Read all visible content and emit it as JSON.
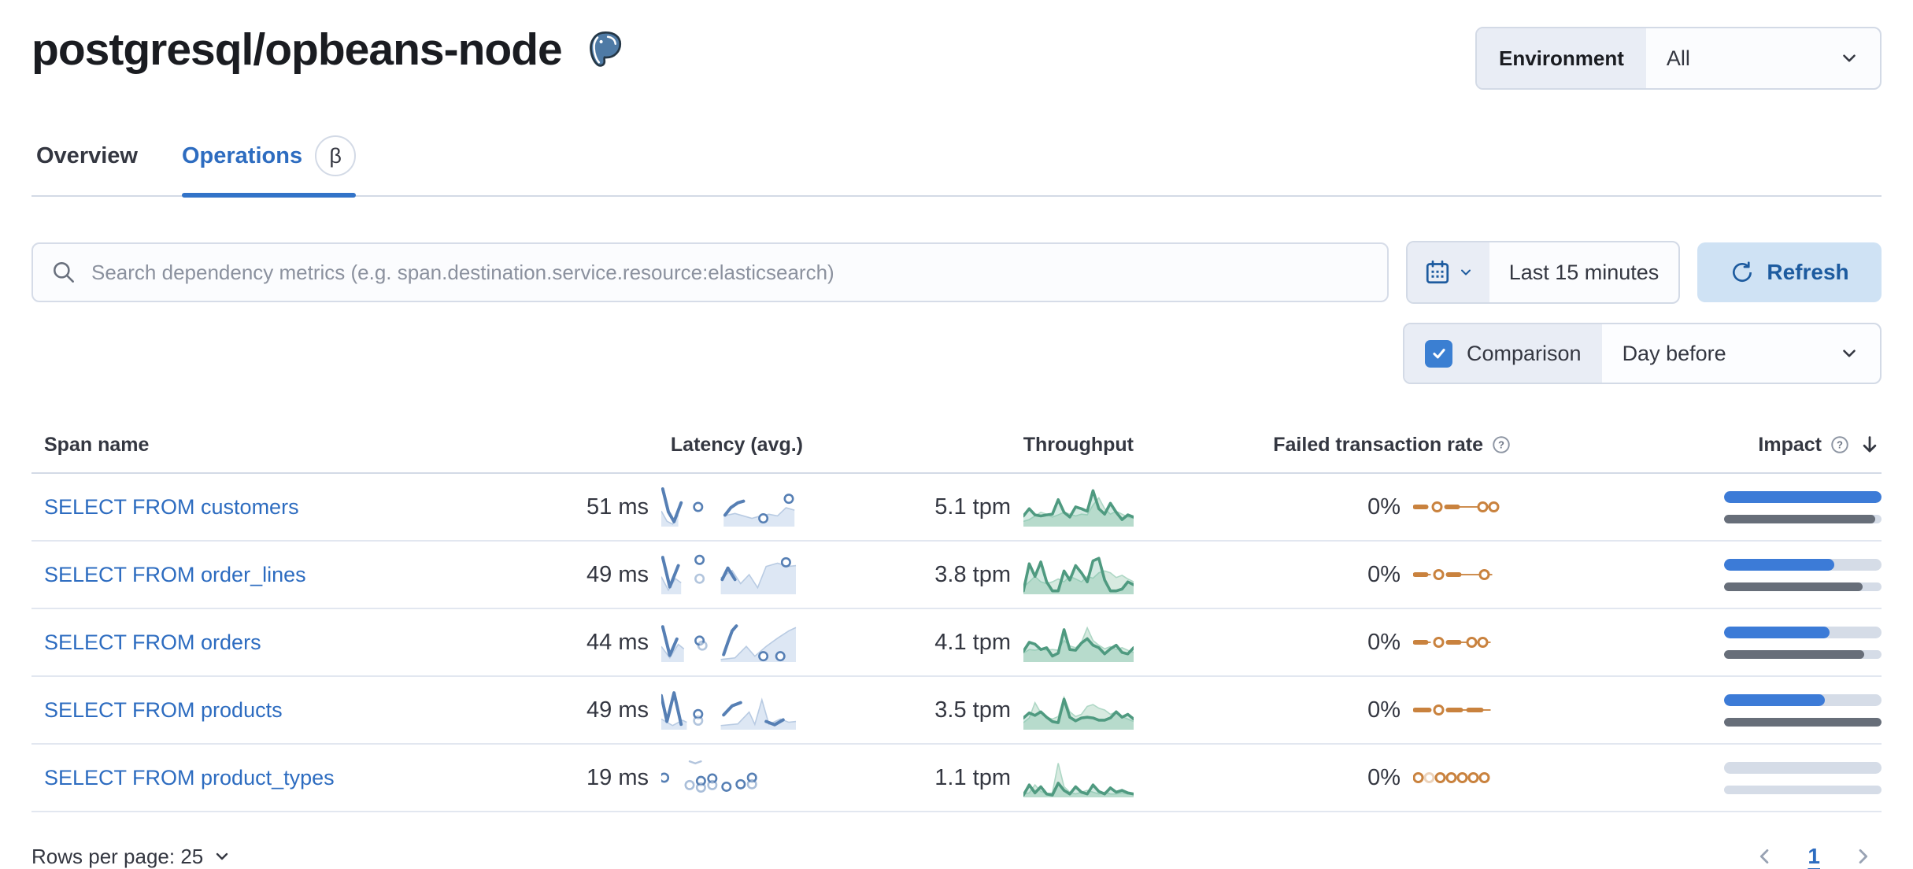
{
  "header": {
    "title": "postgresql/opbeans-node",
    "environment_label": "Environment",
    "environment_value": "All"
  },
  "tabs": {
    "overview": "Overview",
    "operations": "Operations",
    "beta": "β"
  },
  "toolbar": {
    "search_placeholder": "Search dependency metrics (e.g. span.destination.service.resource:elasticsearch)",
    "time_range": "Last 15 minutes",
    "refresh_label": "Refresh",
    "comparison_label": "Comparison",
    "comparison_checked": true,
    "comparison_value": "Day before"
  },
  "table": {
    "columns": [
      "Span name",
      "Latency (avg.)",
      "Throughput",
      "Failed transaction rate",
      "Impact"
    ],
    "sorted_by": "Impact",
    "sort_direction": "desc",
    "rows": [
      {
        "span_name": "SELECT FROM customers",
        "latency": "51 ms",
        "throughput": "5.1 tpm",
        "failed_rate": "0%",
        "impact": {
          "current_pct": 100,
          "previous_pct": 96
        },
        "latency_spark": {
          "fills": [
            [
              [
                0,
                60
              ],
              [
                4,
                85
              ],
              [
                8,
                92
              ],
              [
                12,
                70
              ],
              [
                12,
                98
              ],
              [
                0,
                98
              ]
            ],
            [
              [
                44,
                72
              ],
              [
                52,
                66
              ],
              [
                58,
                72
              ],
              [
                64,
                78
              ],
              [
                70,
                72
              ],
              [
                76,
                68
              ],
              [
                82,
                72
              ],
              [
                88,
                52
              ],
              [
                94,
                58
              ],
              [
                94,
                98
              ],
              [
                44,
                98
              ]
            ]
          ],
          "strokes": [
            [
              [
                1,
                6
              ],
              [
                5,
                62
              ],
              [
                9,
                86
              ],
              [
                14,
                40
              ]
            ],
            [
              [
                45,
                70
              ],
              [
                49,
                52
              ],
              [
                54,
                40
              ],
              [
                58,
                36
              ]
            ]
          ],
          "faint_strokes": [],
          "dots": [
            [
              26,
              50,
              1
            ],
            [
              72,
              78,
              1
            ],
            [
              90,
              30,
              1
            ]
          ]
        },
        "throughput_spark": {
          "previous": [
            0.1,
            0.15,
            0.25,
            0.35,
            0.3,
            0.22,
            0.28,
            0.35,
            0.3,
            0.25,
            0.3,
            0.28,
            0.55,
            0.75,
            0.45,
            0.3,
            0.38,
            0.3,
            0.22,
            0.18
          ],
          "current": [
            0.25,
            0.45,
            0.28,
            0.25,
            0.28,
            0.3,
            0.7,
            0.35,
            0.22,
            0.5,
            0.45,
            0.38,
            0.95,
            0.45,
            0.3,
            0.6,
            0.35,
            0.15,
            0.28,
            0.22
          ]
        },
        "failed_spark": {
          "dashes": [
            [
              0,
              14
            ],
            [
              40,
              54
            ]
          ],
          "thins": [
            [
              54,
              82
            ],
            [
              90,
              96
            ]
          ],
          "circles": [
            [
              28,
              1
            ],
            [
              86,
              1
            ],
            [
              100,
              1
            ]
          ]
        }
      },
      {
        "span_name": "SELECT FROM order_lines",
        "latency": "49 ms",
        "throughput": "3.8 tpm",
        "failed_rate": "0%",
        "impact": {
          "current_pct": 70,
          "previous_pct": 88
        },
        "latency_spark": {
          "fills": [
            [
              [
                0,
                55
              ],
              [
                5,
                88
              ],
              [
                10,
                60
              ],
              [
                14,
                70
              ],
              [
                14,
                98
              ],
              [
                0,
                98
              ]
            ],
            [
              [
                42,
                58
              ],
              [
                50,
                40
              ],
              [
                56,
                72
              ],
              [
                62,
                50
              ],
              [
                68,
                82
              ],
              [
                74,
                30
              ],
              [
                82,
                22
              ],
              [
                90,
                30
              ],
              [
                95,
                28
              ],
              [
                95,
                98
              ],
              [
                42,
                98
              ]
            ]
          ],
          "strokes": [
            [
              [
                1,
                8
              ],
              [
                6,
                80
              ],
              [
                12,
                28
              ]
            ],
            [
              [
                43,
                62
              ],
              [
                47,
                34
              ],
              [
                52,
                62
              ]
            ]
          ],
          "faint_strokes": [],
          "dots": [
            [
              27,
              14,
              1
            ],
            [
              27,
              60,
              0.45
            ],
            [
              88,
              20,
              1
            ]
          ]
        },
        "throughput_spark": {
          "previous": [
            0.15,
            0.3,
            0.45,
            0.3,
            0.25,
            0.3,
            0.38,
            0.3,
            0.45,
            0.38,
            0.3,
            0.45,
            0.4,
            0.55,
            0.6,
            0.55,
            0.42,
            0.48,
            0.38,
            0.3
          ],
          "current": [
            0.05,
            0.8,
            0.45,
            0.85,
            0.3,
            0.05,
            0.05,
            0.6,
            0.35,
            0.75,
            0.55,
            0.3,
            0.88,
            0.95,
            0.35,
            0.05,
            0.05,
            0.1,
            0.3,
            0.22
          ]
        },
        "failed_spark": {
          "dashes": [
            [
              0,
              14
            ],
            [
              42,
              56
            ]
          ],
          "thins": [
            [
              14,
              20
            ],
            [
              56,
              84
            ],
            [
              92,
              98
            ]
          ],
          "circles": [
            [
              30,
              1
            ],
            [
              88,
              1
            ]
          ]
        }
      },
      {
        "span_name": "SELECT FROM orders",
        "latency": "44 ms",
        "throughput": "4.1 tpm",
        "failed_rate": "0%",
        "impact": {
          "current_pct": 67,
          "previous_pct": 89
        },
        "latency_spark": {
          "fills": [
            [
              [
                0,
                60
              ],
              [
                6,
                88
              ],
              [
                12,
                55
              ],
              [
                16,
                66
              ],
              [
                16,
                98
              ],
              [
                0,
                98
              ]
            ],
            [
              [
                42,
                92
              ],
              [
                52,
                88
              ],
              [
                60,
                60
              ],
              [
                66,
                84
              ],
              [
                74,
                60
              ],
              [
                82,
                40
              ],
              [
                90,
                22
              ],
              [
                95,
                14
              ],
              [
                95,
                98
              ],
              [
                42,
                98
              ]
            ]
          ],
          "strokes": [
            [
              [
                1,
                12
              ],
              [
                6,
                82
              ],
              [
                11,
                42
              ]
            ],
            [
              [
                44,
                80
              ],
              [
                47,
                50
              ],
              [
                50,
                22
              ],
              [
                53,
                10
              ]
            ]
          ],
          "faint_strokes": [],
          "dots": [
            [
              27,
              46,
              1
            ],
            [
              29,
              58,
              0.45
            ],
            [
              72,
              84,
              1
            ],
            [
              84,
              84,
              1
            ]
          ]
        },
        "throughput_spark": {
          "previous": [
            0.2,
            0.3,
            0.28,
            0.32,
            0.28,
            0.3,
            0.28,
            0.55,
            0.4,
            0.35,
            0.5,
            0.9,
            0.55,
            0.42,
            0.32,
            0.38,
            0.3,
            0.35,
            0.28,
            0.22
          ],
          "current": [
            0.25,
            0.5,
            0.45,
            0.3,
            0.35,
            0.12,
            0.2,
            0.85,
            0.3,
            0.28,
            0.48,
            0.6,
            0.42,
            0.35,
            0.18,
            0.32,
            0.42,
            0.22,
            0.18,
            0.35
          ]
        },
        "failed_spark": {
          "dashes": [
            [
              0,
              14
            ],
            [
              42,
              56
            ]
          ],
          "thins": [
            [
              14,
              20
            ],
            [
              56,
              68
            ],
            [
              76,
              82
            ],
            [
              90,
              96
            ]
          ],
          "circles": [
            [
              30,
              1
            ],
            [
              72,
              1
            ],
            [
              86,
              1
            ]
          ]
        }
      },
      {
        "span_name": "SELECT FROM products",
        "latency": "49 ms",
        "throughput": "3.5 tpm",
        "failed_rate": "0%",
        "impact": {
          "current_pct": 64,
          "previous_pct": 100
        },
        "latency_spark": {
          "fills": [
            [
              [
                0,
                72
              ],
              [
                8,
                88
              ],
              [
                15,
                75
              ],
              [
                18,
                80
              ],
              [
                18,
                98
              ],
              [
                0,
                98
              ]
            ],
            [
              [
                42,
                88
              ],
              [
                54,
                84
              ],
              [
                62,
                55
              ],
              [
                66,
                85
              ],
              [
                71,
                25
              ],
              [
                76,
                85
              ],
              [
                84,
                72
              ],
              [
                90,
                80
              ],
              [
                95,
                78
              ],
              [
                95,
                98
              ],
              [
                42,
                98
              ]
            ]
          ],
          "strokes": [
            [
              [
                0,
                15
              ],
              [
                4,
                78
              ],
              [
                9,
                8
              ],
              [
                14,
                85
              ]
            ],
            [
              [
                44,
                62
              ],
              [
                50,
                40
              ],
              [
                56,
                32
              ]
            ],
            [
              [
                74,
                78
              ],
              [
                80,
                86
              ],
              [
                86,
                74
              ]
            ]
          ],
          "faint_strokes": [],
          "dots": [
            [
              26,
              60,
              1
            ],
            [
              26,
              76,
              0.45
            ]
          ]
        },
        "throughput_spark": {
          "previous": [
            0.15,
            0.28,
            0.7,
            0.42,
            0.3,
            0.25,
            0.32,
            0.85,
            0.45,
            0.32,
            0.38,
            0.6,
            0.65,
            0.55,
            0.5,
            0.38,
            0.45,
            0.32,
            0.25,
            0.18
          ],
          "current": [
            0.28,
            0.42,
            0.35,
            0.45,
            0.3,
            0.18,
            0.15,
            0.8,
            0.3,
            0.2,
            0.28,
            0.3,
            0.28,
            0.22,
            0.22,
            0.28,
            0.45,
            0.3,
            0.38,
            0.25
          ]
        },
        "failed_spark": {
          "dashes": [
            [
              0,
              18
            ],
            [
              42,
              58
            ],
            [
              68,
              84
            ]
          ],
          "thins": [
            [
              58,
              68
            ],
            [
              84,
              96
            ]
          ],
          "circles": [
            [
              30,
              1
            ]
          ]
        }
      },
      {
        "span_name": "SELECT FROM product_types",
        "latency": "19 ms",
        "throughput": "1.1 tpm",
        "failed_rate": "0%",
        "impact": {
          "current_pct": 0,
          "previous_pct": 0
        },
        "latency_spark": {
          "fills": [],
          "strokes": [],
          "faint_strokes": [
            [
              [
                20,
                10
              ],
              [
                24,
                15
              ],
              [
                28,
                10
              ]
            ]
          ],
          "dots": [
            [
              2,
              50,
              1
            ],
            [
              20,
              68,
              0.5
            ],
            [
              28,
              58,
              1
            ],
            [
              28,
              74,
              0.5
            ],
            [
              36,
              52,
              1
            ],
            [
              36,
              68,
              0.5
            ],
            [
              46,
              72,
              1
            ],
            [
              56,
              66,
              1
            ],
            [
              64,
              50,
              1
            ],
            [
              64,
              66,
              0.5
            ]
          ]
        },
        "throughput_spark": {
          "previous": [
            0.05,
            0.08,
            0.3,
            0.12,
            0.05,
            0.08,
            0.9,
            0.25,
            0.1,
            0.05,
            0.1,
            0.15,
            0.1,
            0.05,
            0.1,
            0.05,
            0.05,
            0.08,
            0.05,
            0.05
          ],
          "current": [
            0.02,
            0.3,
            0.08,
            0.25,
            0.05,
            0.02,
            0.35,
            0.15,
            0.05,
            0.25,
            0.1,
            0.05,
            0.3,
            0.12,
            0.05,
            0.22,
            0.1,
            0.15,
            0.08,
            0.05
          ]
        },
        "failed_spark": {
          "dashes": [],
          "thins": [],
          "circles": [
            [
              4,
              1
            ],
            [
              18,
              0.35
            ],
            [
              32,
              1
            ],
            [
              46,
              1
            ],
            [
              60,
              1
            ],
            [
              74,
              1
            ],
            [
              88,
              1
            ]
          ]
        }
      }
    ]
  },
  "footer": {
    "rows_per_page": "Rows per page: 25",
    "page": "1"
  },
  "colors": {
    "primary_blue": "#2d6cc0",
    "impact_bar_blue": "#3c7bd7",
    "impact_bar_gray": "#676e79",
    "impact_track": "#d5dce7",
    "latency_line": "#567fb4",
    "latency_fill": "#dde7f4",
    "throughput_line": "#4f9a80",
    "throughput_fill": "rgba(109,184,158,0.30)",
    "throughput_prev_fill": "#d7eae0",
    "throughput_prev_line": "#aed7c5",
    "failed_orange": "#c9823e",
    "refresh_bg": "#cfe2f4",
    "refresh_text": "#1d5b9f"
  }
}
